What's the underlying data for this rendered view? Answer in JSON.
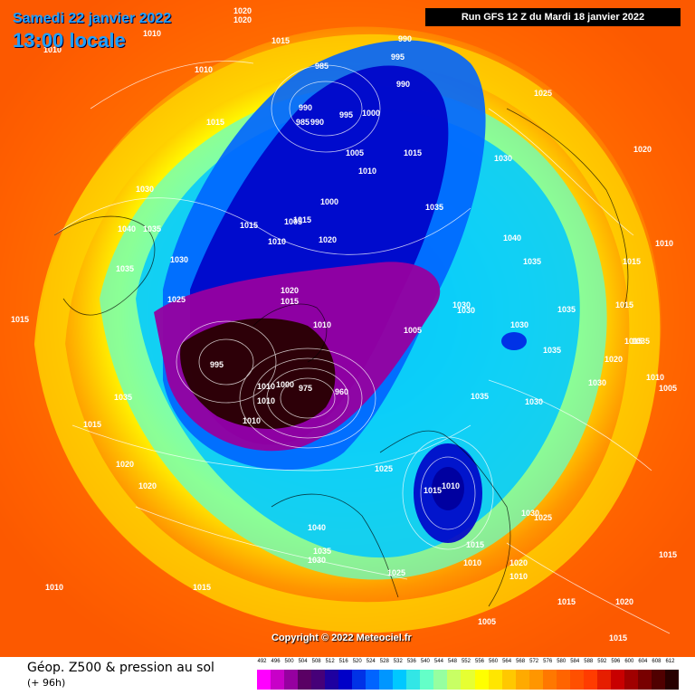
{
  "header": {
    "date": "Samedi 22 janvier 2022",
    "time": "13:00 locale",
    "run": "Run GFS 12 Z du Mardi 18 janvier 2022"
  },
  "copyright": "Copyright © 2022 Meteociel.fr",
  "footer": {
    "title": "Géop. Z500 & pression au sol",
    "subtitle": "(+ 96h)"
  },
  "scale": {
    "labels": [
      "492",
      "496",
      "500",
      "504",
      "508",
      "512",
      "516",
      "520",
      "524",
      "528",
      "532",
      "536",
      "540",
      "544",
      "548",
      "552",
      "556",
      "560",
      "564",
      "568",
      "572",
      "576",
      "580",
      "584",
      "588",
      "592",
      "596",
      "600",
      "604",
      "608",
      "612"
    ],
    "colors": [
      "#ff00ff",
      "#c800c8",
      "#9600a0",
      "#5a0064",
      "#460078",
      "#1e00a0",
      "#0000c8",
      "#0032e6",
      "#0064ff",
      "#0096ff",
      "#00c8ff",
      "#32e6e6",
      "#64ffc8",
      "#96ffa0",
      "#c8ff64",
      "#e6ff32",
      "#ffff00",
      "#ffe600",
      "#ffc800",
      "#ffaa00",
      "#ff9600",
      "#ff7800",
      "#ff6400",
      "#ff5000",
      "#ff3c00",
      "#e61e00",
      "#c80000",
      "#a00000",
      "#780000",
      "#500000",
      "#280000"
    ]
  },
  "pressure_labels": [
    {
      "text": "1020"
    },
    {
      "text": "1020"
    },
    {
      "text": "1010"
    },
    {
      "text": "1010"
    },
    {
      "text": "1015"
    },
    {
      "text": "990"
    },
    {
      "text": "995"
    },
    {
      "text": "985"
    },
    {
      "text": "990"
    },
    {
      "text": "1010"
    },
    {
      "text": "990"
    },
    {
      "text": "995"
    },
    {
      "text": "1000"
    },
    {
      "text": "985"
    },
    {
      "text": "990"
    },
    {
      "text": "1025"
    },
    {
      "text": "1015"
    },
    {
      "text": "1005"
    },
    {
      "text": "1015"
    },
    {
      "text": "1010"
    },
    {
      "text": "1030"
    },
    {
      "text": "1015"
    },
    {
      "text": "1030"
    },
    {
      "text": "1000"
    },
    {
      "text": "1035"
    },
    {
      "text": "1040"
    },
    {
      "text": "1035"
    },
    {
      "text": "1015"
    },
    {
      "text": "1005"
    },
    {
      "text": "1020"
    },
    {
      "text": "1040"
    },
    {
      "text": "1010"
    },
    {
      "text": "1030"
    },
    {
      "text": "1035"
    },
    {
      "text": "1020"
    },
    {
      "text": "1035"
    },
    {
      "text": "1010"
    },
    {
      "text": "1015"
    },
    {
      "text": "1025"
    },
    {
      "text": "1020"
    },
    {
      "text": "1015"
    },
    {
      "text": "1030"
    },
    {
      "text": "1015"
    },
    {
      "text": "1010"
    },
    {
      "text": "1005"
    },
    {
      "text": "1030"
    },
    {
      "text": "1035"
    },
    {
      "text": "1015"
    },
    {
      "text": "995"
    },
    {
      "text": "1030"
    },
    {
      "text": "1035"
    },
    {
      "text": "1015"
    },
    {
      "text": "1020"
    },
    {
      "text": "1010"
    },
    {
      "text": "1000"
    },
    {
      "text": "975"
    },
    {
      "text": "960"
    },
    {
      "text": "1010"
    },
    {
      "text": "1010"
    },
    {
      "text": "1035"
    },
    {
      "text": "1035"
    },
    {
      "text": "1030"
    },
    {
      "text": "1035"
    },
    {
      "text": "1030"
    },
    {
      "text": "1010"
    },
    {
      "text": "1005"
    },
    {
      "text": "1015"
    },
    {
      "text": "1020"
    },
    {
      "text": "1025"
    },
    {
      "text": "1015"
    },
    {
      "text": "1010"
    },
    {
      "text": "1020"
    },
    {
      "text": "1030"
    },
    {
      "text": "1025"
    },
    {
      "text": "1040"
    },
    {
      "text": "1035"
    },
    {
      "text": "1030"
    },
    {
      "text": "1015"
    },
    {
      "text": "1010"
    },
    {
      "text": "1025"
    },
    {
      "text": "1020"
    },
    {
      "text": "1015"
    },
    {
      "text": "1010"
    },
    {
      "text": "1015"
    },
    {
      "text": "1015"
    },
    {
      "text": "1010"
    },
    {
      "text": "1020"
    },
    {
      "text": "1005"
    },
    {
      "text": "1015"
    }
  ]
}
